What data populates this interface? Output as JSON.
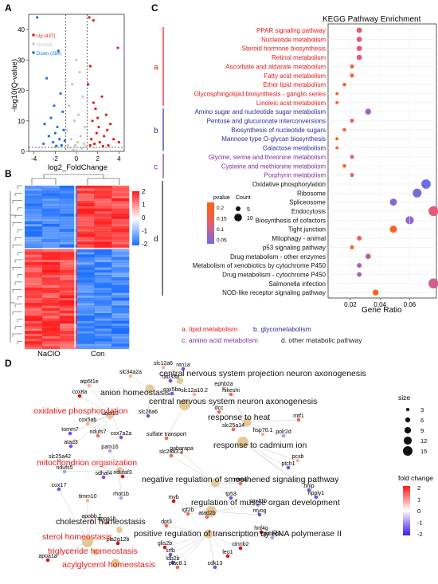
{
  "panels": {
    "a": "A",
    "b": "B",
    "c": "C",
    "d": "D"
  },
  "chart_data": [
    {
      "panel": "A",
      "type": "scatter",
      "xlabel": "log2_FoldChange",
      "ylabel": "-log10(Q-value)",
      "xticks": [
        -4,
        -2,
        0,
        2,
        4
      ],
      "yticks": [
        0,
        10,
        20,
        30,
        40
      ],
      "xlim": [
        -4.5,
        4.5
      ],
      "ylim": [
        0,
        45
      ],
      "vlines": [
        -1,
        1
      ],
      "hline": 1.3,
      "legend": [
        {
          "label": "Up (437)",
          "color": "#e41a1c"
        },
        {
          "label": "Normal",
          "color": "#c8c8c8"
        },
        {
          "label": "Down (284)",
          "color": "#1f6fd6"
        }
      ],
      "points_up": [
        [
          1.2,
          44
        ],
        [
          1.6,
          43
        ],
        [
          3.9,
          34
        ],
        [
          1.3,
          28
        ],
        [
          1.1,
          22
        ],
        [
          2.4,
          18
        ],
        [
          1.8,
          14
        ],
        [
          2.8,
          12
        ],
        [
          3.2,
          9
        ],
        [
          1.5,
          10
        ],
        [
          2.1,
          8
        ],
        [
          1.9,
          6
        ],
        [
          2.6,
          5
        ],
        [
          3.5,
          4
        ],
        [
          1.4,
          4
        ],
        [
          2.2,
          3
        ],
        [
          1.7,
          2.5
        ],
        [
          3.0,
          2
        ],
        [
          1.3,
          2
        ],
        [
          2.5,
          1.7
        ],
        [
          4.0,
          3
        ],
        [
          2.0,
          11
        ],
        [
          1.6,
          16
        ],
        [
          2.9,
          7
        ]
      ],
      "points_down": [
        [
          -3.7,
          44
        ],
        [
          -1.7,
          33
        ],
        [
          -2.8,
          24
        ],
        [
          -1.5,
          19
        ],
        [
          -2.1,
          15
        ],
        [
          -1.3,
          13
        ],
        [
          -2.4,
          11
        ],
        [
          -3.0,
          9
        ],
        [
          -1.8,
          8
        ],
        [
          -1.2,
          7
        ],
        [
          -2.0,
          6
        ],
        [
          -2.6,
          5
        ],
        [
          -1.6,
          4
        ],
        [
          -1.1,
          3.5
        ],
        [
          -2.2,
          3
        ],
        [
          -3.1,
          2.5
        ],
        [
          -1.4,
          2
        ],
        [
          -1.9,
          1.8
        ]
      ],
      "points_normal": [
        [
          0,
          30
        ],
        [
          0.3,
          26
        ],
        [
          -0.4,
          22
        ],
        [
          0.6,
          18
        ],
        [
          -0.7,
          15
        ],
        [
          0.2,
          12
        ],
        [
          -0.2,
          10
        ],
        [
          0.8,
          8
        ],
        [
          -0.9,
          7
        ],
        [
          0.4,
          5
        ],
        [
          -0.5,
          4
        ],
        [
          0.1,
          3
        ],
        [
          -0.1,
          2
        ],
        [
          0.7,
          2.5
        ],
        [
          -0.8,
          2
        ],
        [
          0.5,
          1
        ],
        [
          -0.3,
          0.5
        ],
        [
          0.9,
          1.5
        ],
        [
          -0.6,
          1.2
        ],
        [
          0,
          0.3
        ]
      ]
    },
    {
      "panel": "B",
      "type": "heatmap",
      "xlabels": [
        "NaClO",
        "Con"
      ],
      "colorbar_ticks": [
        2,
        1,
        0,
        -1,
        -2
      ],
      "colors": {
        "high": "#ff1a1a",
        "mid": "#ffffff",
        "low": "#1a6eff"
      },
      "blocks": [
        {
          "rows": "top",
          "cols": "NaClO",
          "level": -1
        },
        {
          "rows": "top",
          "cols": "Con",
          "level": 1
        },
        {
          "rows": "bottom",
          "cols": "NaClO",
          "level": 1
        },
        {
          "rows": "bottom",
          "cols": "Con",
          "level": -1
        }
      ]
    },
    {
      "panel": "C",
      "type": "scatter",
      "title": "KEGG Pathway Enrichment",
      "xlabel": "Gene Ratio",
      "xticks": [
        0.02,
        0.04,
        0.06
      ],
      "xlim": [
        0.005,
        0.078
      ],
      "pvalue_label": "pvalue",
      "pvalue_ticks": [
        0.2,
        0.15,
        0.1,
        0.05
      ],
      "count_label": "Count",
      "count_ticks": [
        5,
        10
      ],
      "groups": [
        {
          "letter": "a",
          "color": "#e41a1c",
          "caption": "a. lipid metabolism"
        },
        {
          "letter": "b",
          "color": "#2b2b9e",
          "caption": "b. glycometabolism"
        },
        {
          "letter": "c",
          "color": "#7b2a9e",
          "caption": "c. amino acid metabolism"
        },
        {
          "letter": "d",
          "color": "#222222",
          "caption": "d. other matabolic pathway"
        }
      ],
      "pathways": [
        {
          "name": "PPAR signaling pathway",
          "group": "a",
          "x": 0.026,
          "p": 0.12,
          "count": 6
        },
        {
          "name": "Nucleotide metabolism",
          "group": "a",
          "x": 0.026,
          "p": 0.12,
          "count": 6
        },
        {
          "name": "Steroid hormone biosynthesis",
          "group": "a",
          "x": 0.026,
          "p": 0.12,
          "count": 6
        },
        {
          "name": "Retinol metabolism",
          "group": "a",
          "x": 0.026,
          "p": 0.12,
          "count": 6
        },
        {
          "name": "Ascorbate and aldarate metabolism",
          "group": "a",
          "x": 0.021,
          "p": 0.18,
          "count": 4
        },
        {
          "name": "Fatty acid metabolism",
          "group": "a",
          "x": 0.021,
          "p": 0.18,
          "count": 4
        },
        {
          "name": "Ether lipid metabolism",
          "group": "a",
          "x": 0.016,
          "p": 0.19,
          "count": 3
        },
        {
          "name": "Glycosphingolipid biosynthesis - ganglio series",
          "group": "a",
          "x": 0.011,
          "p": 0.22,
          "count": 2
        },
        {
          "name": "Linoleic acid metabolism",
          "group": "a",
          "x": 0.011,
          "p": 0.22,
          "count": 2
        },
        {
          "name": "Amino sugar and nucleotide sugar metabolism",
          "group": "b",
          "x": 0.032,
          "p": 0.06,
          "count": 7
        },
        {
          "name": "Pentose and glucuronate interconversions",
          "group": "b",
          "x": 0.021,
          "p": 0.12,
          "count": 4
        },
        {
          "name": "Biosynthesis of nucleotide sugars",
          "group": "b",
          "x": 0.016,
          "p": 0.15,
          "count": 3
        },
        {
          "name": "Mannose type O-glycan biosynthesis",
          "group": "b",
          "x": 0.011,
          "p": 0.22,
          "count": 2
        },
        {
          "name": "Galactose metabolism",
          "group": "b",
          "x": 0.011,
          "p": 0.23,
          "count": 2
        },
        {
          "name": "Glycine, serine and threonine metabolism",
          "group": "c",
          "x": 0.021,
          "p": 0.1,
          "count": 4
        },
        {
          "name": "Cysteine and methionine metabolism",
          "group": "c",
          "x": 0.016,
          "p": 0.19,
          "count": 3
        },
        {
          "name": "Porphyrin metabolism",
          "group": "c",
          "x": 0.021,
          "p": 0.13,
          "count": 4
        },
        {
          "name": "Oxidative phosphorylation",
          "group": "d",
          "x": 0.071,
          "p": 0.02,
          "count": 13
        },
        {
          "name": "Ribosome",
          "group": "d",
          "x": 0.065,
          "p": 0.03,
          "count": 12
        },
        {
          "name": "Spliceosome",
          "group": "d",
          "x": 0.049,
          "p": 0.04,
          "count": 9
        },
        {
          "name": "Endocytosis",
          "group": "d",
          "x": 0.076,
          "p": 0.12,
          "count": 14
        },
        {
          "name": "Biosynthesis of cofactors",
          "group": "d",
          "x": 0.06,
          "p": 0.05,
          "count": 11
        },
        {
          "name": "Tight junction",
          "group": "d",
          "x": 0.049,
          "p": 0.2,
          "count": 9
        },
        {
          "name": "Mitophagy - animal",
          "group": "d",
          "x": 0.026,
          "p": 0.14,
          "count": 5
        },
        {
          "name": "p53 signaling pathway",
          "group": "d",
          "x": 0.021,
          "p": 0.21,
          "count": 4
        },
        {
          "name": "Drug metabolism - other enzymes",
          "group": "d",
          "x": 0.032,
          "p": 0.08,
          "count": 6
        },
        {
          "name": "Metabolism of xenobiotics by cytochrome P450",
          "group": "d",
          "x": 0.026,
          "p": 0.07,
          "count": 5
        },
        {
          "name": "Drug metabolism - cytochrome P450",
          "group": "d",
          "x": 0.026,
          "p": 0.07,
          "count": 5
        },
        {
          "name": "Salmonella infection",
          "group": "d",
          "x": 0.076,
          "p": 0.1,
          "count": 14
        },
        {
          "name": "NOD-like receptor signaling pathway",
          "group": "d",
          "x": 0.037,
          "p": 0.21,
          "count": 7
        }
      ]
    },
    {
      "panel": "D",
      "type": "network",
      "size_label": "size",
      "size_ticks": [
        3,
        6,
        9,
        12,
        15
      ],
      "fold_label": "fold change",
      "fold_ticks": [
        2,
        1,
        0,
        -1,
        -2
      ],
      "terms": [
        {
          "label": "central nervous system projection neuron axonogenesis",
          "red": false
        },
        {
          "label": "anion homeostasis",
          "red": false
        },
        {
          "label": "central nervous system neuron axonogenesis",
          "red": false
        },
        {
          "label": "oxidative phosphorylation",
          "red": true
        },
        {
          "label": "response to heat",
          "red": false
        },
        {
          "label": "response to cadmium ion",
          "red": false
        },
        {
          "label": "mitochondrion organization",
          "red": true
        },
        {
          "label": "negative regulation of smoothened signaling pathway",
          "red": false
        },
        {
          "label": "regulation of muscle organ development",
          "red": false
        },
        {
          "label": "cholesterol homeostasis",
          "red": false
        },
        {
          "label": "positive regulation of transcription by RNA polymerase II",
          "red": false
        },
        {
          "label": "sterol homeostasis",
          "red": true
        },
        {
          "label": "triglyceride homeostasis",
          "red": true
        },
        {
          "label": "acylglycerol homeostasis",
          "red": true
        }
      ],
      "genes": [
        "ntn1a",
        "slc12a6",
        "slc34a2a",
        "rab33a",
        "ephb2a",
        "atp5f1e",
        "cox5ba",
        "slc12a10.2",
        "hikeshi",
        "cox8a",
        "dcc",
        "mtf1",
        "uqcr10",
        "slc26a6",
        "cox5ab",
        "polr2d",
        "slc25a14",
        "tomm7",
        "ndufs7",
        "cox7a2a",
        "hsp70.1",
        "atad3",
        "pam16",
        "sulfate transport",
        "slc25a42",
        "gabarapa",
        "slc26a3.2",
        "ndufs5",
        "sdhaf4",
        "pcxb",
        "ptch1",
        "cox17",
        "ndufaf3",
        "hhip",
        "timm10",
        "rhot1b",
        "tp53",
        "myb",
        "sox11b",
        "rerea",
        "ripply1",
        "igf2b",
        "atad2b",
        "apobb.1",
        "apoa1b",
        "myog",
        "dpt3",
        "hnf4g",
        "gabbp1",
        "pla2g12b",
        "glis2b",
        "srfb",
        "ctnnb2",
        "apoa1a",
        "ldb2b",
        "leo1",
        "plac8.1",
        "cdk13"
      ]
    }
  ]
}
